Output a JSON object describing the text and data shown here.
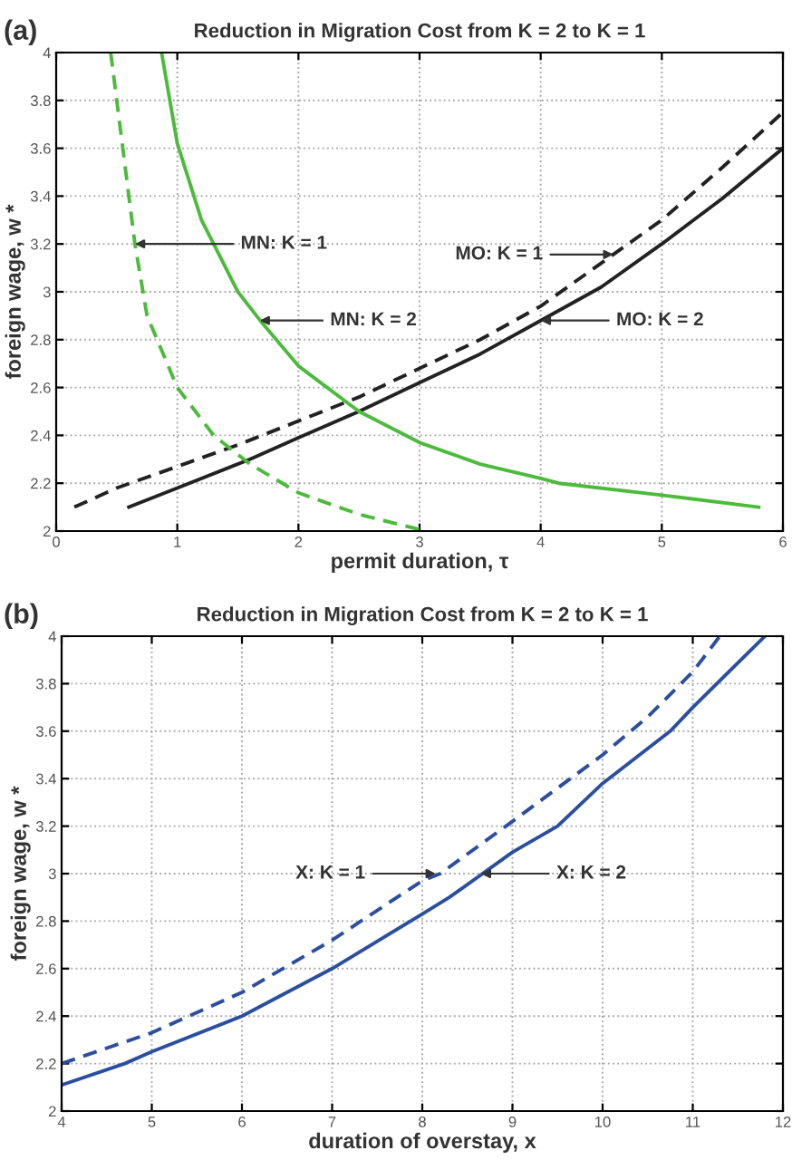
{
  "chart_data": [
    {
      "type": "line",
      "title": "Reduction in Migration Cost from K = 2 to K = 1",
      "xlabel": "permit duration, τ",
      "ylabel": "foreign wage, w *",
      "xlim": [
        0,
        6
      ],
      "ylim": [
        2,
        4
      ],
      "xticks": [
        0,
        1,
        2,
        3,
        4,
        5,
        6
      ],
      "yticks": [
        2,
        2.2,
        2.4,
        2.6,
        2.8,
        3,
        3.2,
        3.4,
        3.6,
        3.8,
        4
      ],
      "grid": true,
      "series": [
        {
          "color": "#222222",
          "line_style": "solid",
          "x": [
            0.6,
            1,
            1.6,
            2,
            2.5,
            3,
            3.5,
            4,
            4.5,
            5,
            5.5,
            6
          ],
          "values": [
            2.1,
            2.18,
            2.3,
            2.39,
            2.5,
            2.62,
            2.74,
            2.88,
            3.02,
            3.2,
            3.39,
            3.6
          ]
        },
        {
          "color": "#222222",
          "line_style": "dashed",
          "x": [
            0.15,
            0.5,
            1,
            1.5,
            2,
            2.5,
            3,
            3.5,
            4,
            4.5,
            5,
            5.5,
            6
          ],
          "values": [
            2.1,
            2.18,
            2.27,
            2.36,
            2.46,
            2.56,
            2.68,
            2.8,
            2.94,
            3.12,
            3.3,
            3.52,
            3.75
          ]
        },
        {
          "color": "#4cbb3c",
          "line_style": "solid",
          "x": [
            0.87,
            1,
            1.2,
            1.5,
            1.7,
            2,
            2.5,
            3,
            3.5,
            4,
            4.15,
            5,
            5.8
          ],
          "values": [
            4.0,
            3.62,
            3.3,
            3.0,
            2.87,
            2.69,
            2.5,
            2.37,
            2.28,
            2.22,
            2.2,
            2.15,
            2.1
          ]
        },
        {
          "color": "#4cbb3c",
          "line_style": "dashed",
          "x": [
            0.45,
            0.55,
            0.65,
            0.75,
            1,
            1.3,
            1.6,
            2,
            2.5,
            3.05
          ],
          "values": [
            4.0,
            3.6,
            3.2,
            2.9,
            2.6,
            2.4,
            2.28,
            2.16,
            2.07,
            2.0
          ]
        }
      ],
      "annotations": [
        "(a)",
        {
          "text": "MN: K = 1",
          "x": 0.65,
          "y": 3.2
        },
        {
          "text": "MO: K = 1",
          "x": 4.6,
          "y": 3.156
        },
        {
          "text": "MN: K = 2",
          "x": 1.68,
          "y": 2.88
        },
        {
          "text": "MO: K = 2",
          "x": 4.0,
          "y": 2.88
        }
      ]
    },
    {
      "type": "line",
      "title": "Reduction in Migration Cost from K = 2 to K = 1",
      "xlabel": "duration of overstay, x",
      "ylabel": "foreign wage, w *",
      "xlim": [
        4,
        12
      ],
      "ylim": [
        2,
        4
      ],
      "xticks": [
        4,
        5,
        6,
        7,
        8,
        9,
        10,
        11,
        12
      ],
      "yticks": [
        2,
        2.2,
        2.4,
        2.6,
        2.8,
        3,
        3.2,
        3.4,
        3.6,
        3.8,
        4
      ],
      "grid": true,
      "series": [
        {
          "color": "#2b4fa0",
          "line_style": "solid",
          "x": [
            4,
            4.7,
            5,
            6,
            7,
            8,
            8.3,
            9,
            9.5,
            10,
            10.75,
            11,
            11.8
          ],
          "values": [
            2.11,
            2.2,
            2.25,
            2.4,
            2.6,
            2.83,
            2.9,
            3.09,
            3.2,
            3.38,
            3.6,
            3.7,
            4.0
          ]
        },
        {
          "color": "#2b4fa0",
          "line_style": "dashed",
          "x": [
            4,
            5,
            6,
            7,
            8,
            8.2,
            9,
            10,
            10.5,
            11,
            11.3
          ],
          "values": [
            2.2,
            2.33,
            2.5,
            2.72,
            2.97,
            3.0,
            3.22,
            3.5,
            3.66,
            3.85,
            4.0
          ]
        }
      ],
      "annotations": [
        "(b)",
        {
          "text": "X: K = 1",
          "x": 8.15,
          "y": 3.0
        },
        {
          "text": "X: K = 2",
          "x": 8.65,
          "y": 3.0
        }
      ]
    }
  ]
}
